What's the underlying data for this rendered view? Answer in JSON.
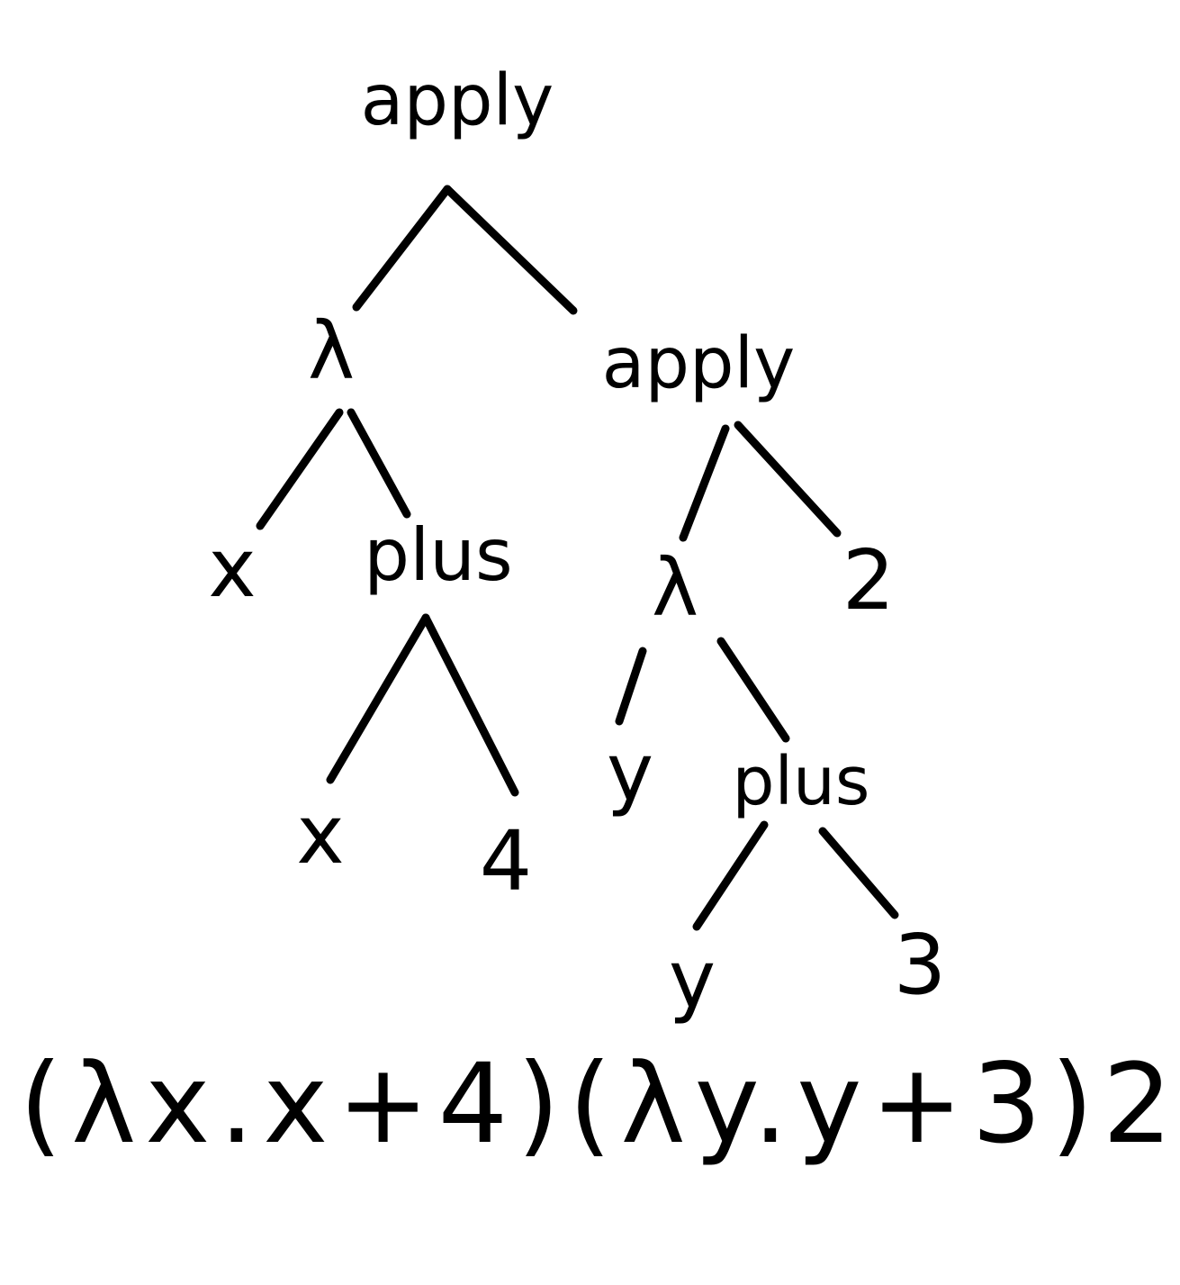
{
  "tree": {
    "root": {
      "label": "apply",
      "lambda1": {
        "label": "λ",
        "param": "x",
        "body": {
          "label": "plus",
          "left": "x",
          "right": "4"
        }
      },
      "apply2": {
        "label": "apply",
        "lambda2": {
          "label": "λ",
          "param": "y",
          "body": {
            "label": "plus",
            "left": "y",
            "right": "3"
          }
        },
        "arg": "2"
      }
    }
  },
  "expression": "(λx.x+4)(λy.y+3)2"
}
